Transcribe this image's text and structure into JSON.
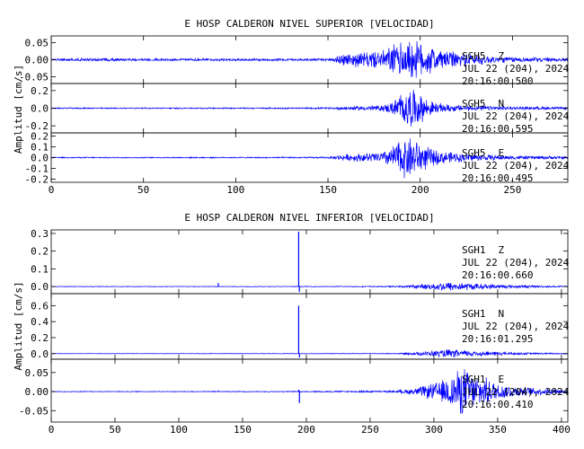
{
  "chart_data": [
    {
      "type": "line",
      "title": "E HOSP CALDERON NIVEL SUPERIOR [VELOCIDAD]",
      "ylabel": "Amplitud [cm/s]",
      "xlim": [
        0,
        280
      ],
      "xticks": [
        0,
        50,
        100,
        150,
        200,
        250
      ],
      "line_color": "#0000ff",
      "traces": [
        {
          "station": "SGH5",
          "component": "Z",
          "date": "JUL 22 (204), 2024",
          "time": "20:16:00.500",
          "ylim": [
            -0.07,
            0.07
          ],
          "yticks": [
            "0.05",
            "0.00",
            "-0.05"
          ],
          "ytick_values": [
            0.05,
            0.0,
            -0.05
          ],
          "envelope": {
            "x": [
              0,
              20,
              60,
              100,
              150,
              158,
              170,
              180,
              185,
              190,
              195,
              200,
              205,
              210,
              220,
              230,
              240,
              255,
              280
            ],
            "y": [
              0.003,
              0.005,
              0.004,
              0.004,
              0.004,
              0.02,
              0.025,
              0.03,
              0.05,
              0.06,
              0.065,
              0.06,
              0.05,
              0.035,
              0.025,
              0.018,
              0.012,
              0.008,
              0.006
            ]
          },
          "spikes": []
        },
        {
          "station": "SGH5",
          "component": "N",
          "date": "JUL 22 (204), 2024",
          "time": "20:16:00.595",
          "ylim": [
            -0.28,
            0.28
          ],
          "yticks": [
            "0.2",
            "0.0",
            "-0.2"
          ],
          "ytick_values": [
            0.2,
            0.0,
            -0.2
          ],
          "envelope": {
            "x": [
              0,
              100,
              150,
              158,
              170,
              180,
              185,
              190,
              195,
              200,
              205,
              210,
              220,
              230,
              250,
              280
            ],
            "y": [
              0.008,
              0.008,
              0.01,
              0.02,
              0.03,
              0.04,
              0.08,
              0.2,
              0.25,
              0.18,
              0.1,
              0.06,
              0.04,
              0.03,
              0.02,
              0.015
            ]
          },
          "spikes": []
        },
        {
          "station": "SGH5",
          "component": "E",
          "date": "JUL 22 (204), 2024",
          "time": "20:16:00.495",
          "ylim": [
            -0.23,
            0.23
          ],
          "yticks": [
            "0.2",
            "0.1",
            "0.0",
            "-0.1",
            "-0.2"
          ],
          "ytick_values": [
            0.2,
            0.1,
            0.0,
            -0.1,
            -0.2
          ],
          "envelope": {
            "x": [
              0,
              100,
              150,
              158,
              170,
              180,
              185,
              190,
              195,
              200,
              205,
              210,
              220,
              230,
              250,
              280
            ],
            "y": [
              0.006,
              0.006,
              0.008,
              0.03,
              0.045,
              0.06,
              0.12,
              0.2,
              0.22,
              0.16,
              0.1,
              0.07,
              0.05,
              0.035,
              0.02,
              0.015
            ]
          },
          "spikes": []
        }
      ]
    },
    {
      "type": "line",
      "title": "E HOSP CALDERON NIVEL INFERIOR [VELOCIDAD]",
      "ylabel": "Amplitud [cm/s]",
      "xlim": [
        0,
        405
      ],
      "xticks": [
        0,
        50,
        100,
        150,
        200,
        250,
        300,
        350,
        400
      ],
      "line_color": "#0000ff",
      "traces": [
        {
          "station": "SGH1",
          "component": "Z",
          "date": "JUL 22 (204), 2024",
          "time": "20:16:00.660",
          "ylim": [
            -0.04,
            0.32
          ],
          "yticks": [
            "0.3",
            "0.2",
            "0.1",
            "0.0"
          ],
          "ytick_values": [
            0.3,
            0.2,
            0.1,
            0.0
          ],
          "envelope": {
            "x": [
              0,
              100,
              200,
              270,
              285,
              300,
              310,
              320,
              330,
              345,
              360,
              380,
              405
            ],
            "y": [
              0.002,
              0.002,
              0.002,
              0.004,
              0.01,
              0.02,
              0.03,
              0.025,
              0.02,
              0.015,
              0.01,
              0.006,
              0.004
            ]
          },
          "spikes": [
            {
              "x": 131,
              "y": 0.02
            },
            {
              "x": 194,
              "y": 0.31
            },
            {
              "x": 194.6,
              "y": -0.03
            }
          ]
        },
        {
          "station": "SGH1",
          "component": "N",
          "date": "JUL 22 (204), 2024",
          "time": "20:16:01.295",
          "ylim": [
            -0.07,
            0.75
          ],
          "yticks": [
            "0.6",
            "0.4",
            "0.2",
            "0.0"
          ],
          "ytick_values": [
            0.6,
            0.4,
            0.2,
            0.0
          ],
          "envelope": {
            "x": [
              0,
              100,
              200,
              270,
              285,
              300,
              310,
              320,
              330,
              345,
              360,
              380,
              405
            ],
            "y": [
              0.003,
              0.003,
              0.004,
              0.006,
              0.02,
              0.04,
              0.06,
              0.05,
              0.04,
              0.03,
              0.02,
              0.012,
              0.008
            ]
          },
          "spikes": [
            {
              "x": 194,
              "y": 0.6
            },
            {
              "x": 194.6,
              "y": -0.05
            }
          ]
        },
        {
          "station": "SGH1",
          "component": "E",
          "date": "JUL 22 (204), 2024",
          "time": "20:16:00.410",
          "ylim": [
            -0.08,
            0.085
          ],
          "yticks": [
            "0.05",
            "0.00",
            "-0.05"
          ],
          "ytick_values": [
            0.05,
            0.0,
            -0.05
          ],
          "envelope": {
            "x": [
              0,
              100,
              200,
              270,
              285,
              295,
              305,
              315,
              320,
              325,
              330,
              340,
              350,
              365,
              380,
              405
            ],
            "y": [
              0.001,
              0.001,
              0.0015,
              0.003,
              0.01,
              0.02,
              0.03,
              0.05,
              0.065,
              0.07,
              0.05,
              0.04,
              0.025,
              0.015,
              0.01,
              0.006
            ]
          },
          "spikes": [
            {
              "x": 131,
              "y": 0.003
            },
            {
              "x": 194,
              "y": 0.005
            },
            {
              "x": 194.6,
              "y": -0.03
            }
          ]
        }
      ]
    }
  ]
}
